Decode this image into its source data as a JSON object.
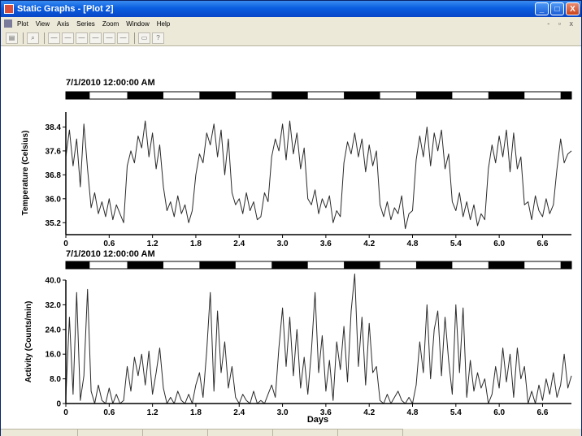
{
  "window": {
    "title": "Static Graphs - [Plot 2]",
    "controls": {
      "minimize": "_",
      "maximize": "□",
      "close": "X"
    }
  },
  "menu": {
    "items": [
      "Plot",
      "View",
      "Axis",
      "Series",
      "Zoom",
      "Window",
      "Help"
    ],
    "right_controls": "- ▫ x"
  },
  "toolbar": {
    "buttons": [
      {
        "name": "print",
        "icon": "printer-icon",
        "glyph": "▤"
      },
      {
        "name": "zoom",
        "icon": "magnifier-icon",
        "glyph": "⌕"
      },
      {
        "name": "axis1",
        "icon": "axis-icon",
        "glyph": "—"
      },
      {
        "name": "axis2",
        "icon": "axis-icon",
        "glyph": "—"
      },
      {
        "name": "axis3",
        "icon": "axis-icon",
        "glyph": "—"
      },
      {
        "name": "axis4",
        "icon": "axis-icon",
        "glyph": "—"
      },
      {
        "name": "axis5",
        "icon": "axis-icon",
        "glyph": "—"
      },
      {
        "name": "axis6",
        "icon": "axis-icon",
        "glyph": "—"
      },
      {
        "name": "copy",
        "icon": "copy-icon",
        "glyph": "▭"
      },
      {
        "name": "help",
        "icon": "help-pointer-icon",
        "glyph": "?"
      }
    ]
  },
  "colors": {
    "trace": "#2a2a2a",
    "dark_phase": "#000000",
    "light_phase": "#ffffff"
  },
  "chart_data": [
    {
      "type": "line",
      "start_label": "7/1/2010 12:00:00 AM",
      "ylabel": "Temperature (Celsius)",
      "xlabel": "",
      "xlim": [
        0,
        7.0
      ],
      "ylim": [
        34.8,
        38.9
      ],
      "xticks": [
        "0",
        "0.6",
        "1.2",
        "1.8",
        "2.4",
        "3.0",
        "3.6",
        "4.2",
        "4.8",
        "5.4",
        "6.0",
        "6.6"
      ],
      "yticks": [
        "38.4",
        "37.6",
        "36.8",
        "36.0",
        "35.2"
      ],
      "light_dark_bar": [
        {
          "phase": "dark",
          "from": 0.0,
          "to": 0.33
        },
        {
          "phase": "light",
          "from": 0.33,
          "to": 0.85
        },
        {
          "phase": "dark",
          "from": 0.85,
          "to": 1.35
        },
        {
          "phase": "light",
          "from": 1.35,
          "to": 1.85
        },
        {
          "phase": "dark",
          "from": 1.85,
          "to": 2.35
        },
        {
          "phase": "light",
          "from": 2.35,
          "to": 2.85
        },
        {
          "phase": "dark",
          "from": 2.85,
          "to": 3.35
        },
        {
          "phase": "light",
          "from": 3.35,
          "to": 3.85
        },
        {
          "phase": "dark",
          "from": 3.85,
          "to": 4.35
        },
        {
          "phase": "light",
          "from": 4.35,
          "to": 4.85
        },
        {
          "phase": "dark",
          "from": 4.85,
          "to": 5.35
        },
        {
          "phase": "light",
          "from": 5.35,
          "to": 5.85
        },
        {
          "phase": "dark",
          "from": 5.85,
          "to": 6.35
        },
        {
          "phase": "light",
          "from": 6.35,
          "to": 6.85
        },
        {
          "phase": "dark",
          "from": 6.85,
          "to": 7.0
        }
      ],
      "series": [
        {
          "x": [
            0.0,
            0.05,
            0.1,
            0.15,
            0.2,
            0.25,
            0.3,
            0.35,
            0.4,
            0.45,
            0.5,
            0.55,
            0.6,
            0.65,
            0.7,
            0.75,
            0.8,
            0.85,
            0.9,
            0.95,
            1.0,
            1.05,
            1.1,
            1.15,
            1.2,
            1.25,
            1.3,
            1.35,
            1.4,
            1.45,
            1.5,
            1.55,
            1.6,
            1.65,
            1.7,
            1.75,
            1.8,
            1.85,
            1.9,
            1.95,
            2.0,
            2.05,
            2.1,
            2.15,
            2.2,
            2.25,
            2.3,
            2.35,
            2.4,
            2.45,
            2.5,
            2.55,
            2.6,
            2.65,
            2.7,
            2.75,
            2.8,
            2.85,
            2.9,
            2.95,
            3.0,
            3.05,
            3.1,
            3.15,
            3.2,
            3.25,
            3.3,
            3.35,
            3.4,
            3.45,
            3.5,
            3.55,
            3.6,
            3.65,
            3.7,
            3.75,
            3.8,
            3.85,
            3.9,
            3.95,
            4.0,
            4.05,
            4.1,
            4.15,
            4.2,
            4.25,
            4.3,
            4.35,
            4.4,
            4.45,
            4.5,
            4.55,
            4.6,
            4.65,
            4.7,
            4.75,
            4.8,
            4.85,
            4.9,
            4.95,
            5.0,
            5.05,
            5.1,
            5.15,
            5.2,
            5.25,
            5.3,
            5.35,
            5.4,
            5.45,
            5.5,
            5.55,
            5.6,
            5.65,
            5.7,
            5.75,
            5.8,
            5.85,
            5.9,
            5.95,
            6.0,
            6.05,
            6.1,
            6.15,
            6.2,
            6.25,
            6.3,
            6.35,
            6.4,
            6.45,
            6.5,
            6.55,
            6.6,
            6.65,
            6.7,
            6.75,
            6.8,
            6.85,
            6.9,
            6.95,
            7.0
          ],
          "values": [
            37.4,
            38.3,
            37.1,
            38.0,
            36.4,
            38.5,
            37.0,
            35.7,
            36.2,
            35.5,
            35.9,
            35.4,
            36.0,
            35.3,
            35.8,
            35.5,
            35.2,
            37.1,
            37.6,
            37.2,
            38.1,
            37.7,
            38.6,
            37.4,
            38.2,
            37.0,
            37.8,
            36.4,
            35.6,
            35.9,
            35.4,
            36.1,
            35.5,
            35.8,
            35.2,
            35.6,
            36.8,
            37.5,
            37.2,
            38.2,
            37.8,
            38.5,
            37.4,
            38.3,
            36.8,
            38.0,
            36.2,
            35.8,
            36.0,
            35.5,
            36.2,
            35.6,
            35.9,
            35.3,
            35.4,
            36.2,
            35.9,
            37.4,
            38.0,
            37.6,
            38.5,
            37.3,
            38.6,
            37.5,
            38.2,
            37.0,
            37.7,
            36.0,
            35.8,
            36.3,
            35.5,
            36.0,
            35.7,
            36.1,
            35.2,
            35.6,
            35.4,
            37.2,
            37.9,
            37.5,
            38.2,
            37.4,
            38.0,
            36.9,
            37.8,
            37.1,
            37.6,
            35.8,
            35.4,
            35.9,
            35.3,
            35.7,
            35.5,
            36.1,
            35.0,
            35.5,
            35.6,
            37.3,
            38.1,
            37.4,
            38.4,
            37.1,
            38.2,
            37.6,
            38.3,
            37.0,
            37.5,
            35.9,
            35.6,
            36.2,
            35.4,
            35.9,
            35.3,
            35.8,
            35.1,
            35.5,
            35.3,
            37.0,
            37.8,
            37.2,
            38.1,
            37.4,
            38.3,
            36.9,
            38.2,
            37.0,
            37.4,
            35.8,
            35.9,
            35.3,
            36.1,
            35.6,
            35.4,
            36.0,
            35.5,
            35.8,
            37.0,
            38.0,
            37.2,
            37.5,
            37.6
          ]
        }
      ]
    },
    {
      "type": "line",
      "start_label": "7/1/2010 12:00:00 AM",
      "ylabel": "Activity (Counts/min)",
      "xlabel": "Days",
      "xlim": [
        0,
        7.0
      ],
      "ylim": [
        0,
        40
      ],
      "xticks": [
        "0",
        "0.6",
        "1.2",
        "1.8",
        "2.4",
        "3.0",
        "3.6",
        "4.2",
        "4.8",
        "5.4",
        "6.0",
        "6.6"
      ],
      "yticks": [
        "40.0",
        "32.0",
        "24.0",
        "16.0",
        "8.0",
        "0"
      ],
      "light_dark_bar": [
        {
          "phase": "dark",
          "from": 0.0,
          "to": 0.33
        },
        {
          "phase": "light",
          "from": 0.33,
          "to": 0.85
        },
        {
          "phase": "dark",
          "from": 0.85,
          "to": 1.35
        },
        {
          "phase": "light",
          "from": 1.35,
          "to": 1.85
        },
        {
          "phase": "dark",
          "from": 1.85,
          "to": 2.35
        },
        {
          "phase": "light",
          "from": 2.35,
          "to": 2.85
        },
        {
          "phase": "dark",
          "from": 2.85,
          "to": 3.35
        },
        {
          "phase": "light",
          "from": 3.35,
          "to": 3.85
        },
        {
          "phase": "dark",
          "from": 3.85,
          "to": 4.35
        },
        {
          "phase": "light",
          "from": 4.35,
          "to": 4.85
        },
        {
          "phase": "dark",
          "from": 4.85,
          "to": 5.35
        },
        {
          "phase": "light",
          "from": 5.35,
          "to": 5.85
        },
        {
          "phase": "dark",
          "from": 5.85,
          "to": 6.35
        },
        {
          "phase": "light",
          "from": 6.35,
          "to": 6.85
        },
        {
          "phase": "dark",
          "from": 6.85,
          "to": 7.0
        }
      ],
      "series": [
        {
          "x": [
            0.0,
            0.05,
            0.1,
            0.15,
            0.2,
            0.25,
            0.3,
            0.35,
            0.4,
            0.45,
            0.5,
            0.55,
            0.6,
            0.65,
            0.7,
            0.75,
            0.8,
            0.85,
            0.9,
            0.95,
            1.0,
            1.05,
            1.1,
            1.15,
            1.2,
            1.25,
            1.3,
            1.35,
            1.4,
            1.45,
            1.5,
            1.55,
            1.6,
            1.65,
            1.7,
            1.75,
            1.8,
            1.85,
            1.9,
            1.95,
            2.0,
            2.05,
            2.1,
            2.15,
            2.2,
            2.25,
            2.3,
            2.35,
            2.4,
            2.45,
            2.5,
            2.55,
            2.6,
            2.65,
            2.7,
            2.75,
            2.8,
            2.85,
            2.9,
            2.95,
            3.0,
            3.05,
            3.1,
            3.15,
            3.2,
            3.25,
            3.3,
            3.35,
            3.4,
            3.45,
            3.5,
            3.55,
            3.6,
            3.65,
            3.7,
            3.75,
            3.8,
            3.85,
            3.9,
            3.95,
            4.0,
            4.05,
            4.1,
            4.15,
            4.2,
            4.25,
            4.3,
            4.35,
            4.4,
            4.45,
            4.5,
            4.55,
            4.6,
            4.65,
            4.7,
            4.75,
            4.8,
            4.85,
            4.9,
            4.95,
            5.0,
            5.05,
            5.1,
            5.15,
            5.2,
            5.25,
            5.3,
            5.35,
            5.4,
            5.45,
            5.5,
            5.55,
            5.6,
            5.65,
            5.7,
            5.75,
            5.8,
            5.85,
            5.9,
            5.95,
            6.0,
            6.05,
            6.1,
            6.15,
            6.2,
            6.25,
            6.3,
            6.35,
            6.4,
            6.45,
            6.5,
            6.55,
            6.6,
            6.65,
            6.7,
            6.75,
            6.8,
            6.85,
            6.9,
            6.95,
            7.0
          ],
          "values": [
            2,
            28,
            3,
            36,
            1,
            9,
            37,
            4,
            0,
            6,
            1,
            0,
            5,
            0,
            3,
            0,
            1,
            12,
            4,
            15,
            9,
            16,
            6,
            17,
            3,
            10,
            18,
            5,
            0,
            2,
            0,
            4,
            1,
            0,
            3,
            0,
            6,
            10,
            2,
            17,
            36,
            4,
            30,
            10,
            20,
            5,
            12,
            2,
            0,
            3,
            1,
            0,
            4,
            0,
            1,
            0,
            3,
            6,
            2,
            18,
            31,
            12,
            28,
            9,
            24,
            5,
            15,
            3,
            17,
            36,
            10,
            22,
            4,
            14,
            1,
            20,
            11,
            25,
            7,
            30,
            42,
            12,
            28,
            6,
            26,
            10,
            12,
            1,
            0,
            3,
            0,
            2,
            4,
            1,
            0,
            2,
            0,
            6,
            20,
            10,
            32,
            8,
            24,
            30,
            9,
            28,
            14,
            3,
            32,
            10,
            31,
            2,
            14,
            4,
            10,
            5,
            8,
            0,
            3,
            12,
            5,
            18,
            7,
            16,
            2,
            18,
            8,
            12,
            0,
            4,
            0,
            6,
            1,
            8,
            3,
            10,
            2,
            6,
            16,
            5,
            9
          ]
        }
      ]
    }
  ]
}
